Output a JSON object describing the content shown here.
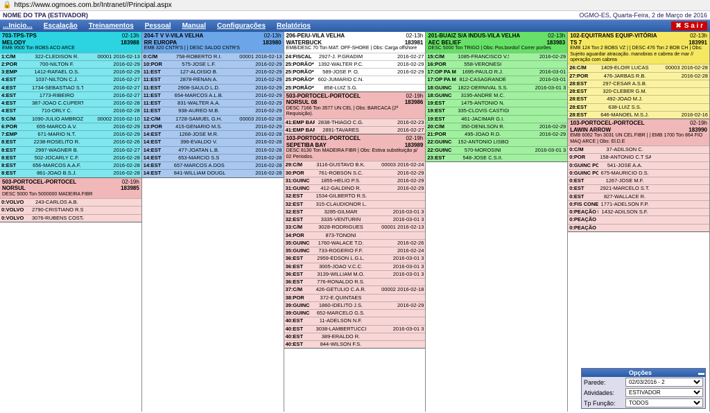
{
  "url": "https://www.ogmoes.com.br/Intranet//Principal.aspx",
  "nav": {
    "left": "NOME DO TPA (ESTIVADOR)",
    "right": "OGMO-ES, Quarta-Feira, 2 de Março de 2016"
  },
  "menu": [
    "...Inicio...",
    "Escalação",
    "Treinamentos",
    "Pessoal",
    "Manual",
    "Configurações",
    "Relatórios"
  ],
  "sair": "S a i r",
  "opts": {
    "title": "Opções",
    "parede_label": "Parede:",
    "parede_value": "02/03/2016 - 2",
    "ativ_label": "Atividades:",
    "ativ_value": "ESTIVADOR",
    "func_label": "Tp Função:",
    "func_value": "TODOS"
  },
  "columns": [
    {
      "ships": [
        {
          "colorH": "c-cyan",
          "colorR": "c-cyanL",
          "title": "703-TPS-TPS",
          "time": "02-13h",
          "name": "MELODY",
          "code": "183988",
          "desc": "EMB 9500 Ton BOBS ACO ARCE",
          "rows": [
            {
              "role": "1:C/M",
              "name": "322-CLEDISON R.",
              "right": "00001 2016-02-13"
            },
            {
              "role": "2:POR",
              "name": "700-NILTON F.",
              "right": "2016-02-29"
            },
            {
              "role": "3:EMP",
              "name": "1412-RAFAEL O.S.",
              "right": "2016-02-29"
            },
            {
              "role": "4:EST",
              "name": "1037-NILTON C.J.",
              "right": "2016-02-27"
            },
            {
              "role": "4:EST",
              "name": "1734-SEBASTIAO S.T.",
              "right": "2016-02-27"
            },
            {
              "role": "4:EST",
              "name": "1773-RIBEIRO",
              "right": "2016-02-27"
            },
            {
              "role": "4:EST",
              "name": "387-JOAO C.CUPERTINO",
              "right": "2016-02-28"
            },
            {
              "role": "4:EST",
              "name": "710-ORLY C.",
              "right": "2016-02-28"
            },
            {
              "role": "5:C/M",
              "name": "1090-JULIO AMBROZINI",
              "right": "00002 2016-02-10"
            },
            {
              "role": "6:POR",
              "name": "655-MARCO A.V.",
              "right": "2016-02-29"
            },
            {
              "role": "7:EMP",
              "name": "671-MARIO N.T.",
              "right": "2016-02-29"
            },
            {
              "role": "8:EST",
              "name": "2238-ROSELITO R.",
              "right": "2016-02-26"
            },
            {
              "role": "8:EST",
              "name": "2997-WAGNER B.",
              "right": "2016-02-27"
            },
            {
              "role": "8:EST",
              "name": "502-JOCARLY C.F.",
              "right": "2016-02-28"
            },
            {
              "role": "8:EST",
              "name": "656-MARCOS A.A.F.",
              "right": "2016-02-28"
            },
            {
              "role": "8:EST",
              "name": "861-JOAO B.S.J.",
              "right": "2016-02-28"
            }
          ]
        },
        {
          "colorH": "c-pink",
          "colorR": "c-pinkL",
          "title": "503-PORTOCEL-PORTOCEL",
          "time": "02-19h",
          "name": "NORSUL",
          "code": "183985",
          "desc": "DESC 5000 Ton 5000000 MADEIRA FIBR",
          "rows": [
            {
              "role": "0:VOLVO",
              "name": "243-CARLOS A.B.",
              "right": ""
            },
            {
              "role": "0:VOLVO",
              "name": "2790-CRISTIANO R.S.",
              "right": ""
            },
            {
              "role": "0:VOLVO",
              "name": "3076-RUBENS COSTA",
              "right": ""
            }
          ]
        }
      ]
    },
    {
      "ships": [
        {
          "colorH": "c-blue",
          "colorR": "c-blueL",
          "title": "204-T V V-VILA VELHA",
          "time": "02-13h",
          "name": "RR EUROPA",
          "code": "183980",
          "desc": "EMB 320 CNTR'S | | DESC SALDO CNTR'S",
          "rows": [
            {
              "role": "0:C/M",
              "name": "758-ROBERTO R.I.",
              "right": "00001 2016-02-13"
            },
            {
              "role": "10:POR",
              "name": "575-JOSE L.F.",
              "right": "2016-02-29"
            },
            {
              "role": "11:EST",
              "name": "127-ALOISIO B.",
              "right": "2016-02-29"
            },
            {
              "role": "11:EST",
              "name": "2878-RENAN A.",
              "right": "2016-02-29"
            },
            {
              "role": "11:EST",
              "name": "2908-SAULO L.D.",
              "right": "2016-02-29"
            },
            {
              "role": "11:EST",
              "name": "654-MARCOS A.L.B.",
              "right": "2016-02-29"
            },
            {
              "role": "11:EST",
              "name": "831-WALTER A.A.",
              "right": "2016-02-29"
            },
            {
              "role": "11:EST",
              "name": "938-AUREO M.B.",
              "right": "2016-02-29"
            },
            {
              "role": "12:C/M",
              "name": "1728-SAMUEL G.H.",
              "right": "00003 2016-02-28"
            },
            {
              "role": "13:POR",
              "name": "415-GENARIO M.S.",
              "right": "2016-02-29"
            },
            {
              "role": "14:EST",
              "name": "1268-JOSE M.R.",
              "right": "2016-02-28"
            },
            {
              "role": "14:EST",
              "name": "396-EVALDO V.",
              "right": "2016-02-28"
            },
            {
              "role": "14:EST",
              "name": "477-JOATAN L.B.",
              "right": "2016-02-28"
            },
            {
              "role": "14:EST",
              "name": "653-MARCIO S.S",
              "right": "2016-02-28"
            },
            {
              "role": "14:EST",
              "name": "657-MARCOS A.DOS SANTOS",
              "right": "2016-02-28"
            },
            {
              "role": "14:EST",
              "name": "841-WILLIAM DOUGLAS",
              "right": "2016-02-28"
            }
          ]
        }
      ]
    },
    {
      "ships": [
        {
          "colorH": "c-white",
          "colorR": "c-white",
          "title": "206-PEIU-VILA VELHA",
          "time": "02-13h",
          "name": "WATERBUCK",
          "code": "183981",
          "desc": "EMB/DESC 70 Ton MAT. OFF-SHORE | Obs: Carga offshore",
          "rows": [
            {
              "role": "24:FISCAL",
              "name": "2927-J. P.GRADIM",
              "right": "2016-02-27"
            },
            {
              "role": "25:PORÃO*",
              "name": "1392-WALTER P.C.",
              "right": "2016-02-29"
            },
            {
              "role": "25:PORÃO*",
              "name": "589-JOSE P. O.",
              "right": "2016-02-29"
            },
            {
              "role": "25:PORÃO*",
              "name": "602-JUMARIO C.N.",
              "right": ""
            },
            {
              "role": "25:PORÃO*",
              "name": "858-LUIZ S.G.",
              "right": ""
            }
          ]
        },
        {
          "colorH": "c-pink",
          "colorR": "c-pinkL",
          "title": "503-PORTOCEL-PORTOCEL",
          "time": "02-19h",
          "name": "NORSUL 08",
          "code": "183986",
          "desc": "DESC 7166 Ton 3577 UN CEL | Obs: BARCACA (2ª Requisição).",
          "rows": [
            {
              "role": "41:EMP BARCAÇA",
              "name": "2838-THIAGO C.G.",
              "right": "2016-02-23"
            },
            {
              "role": "41:EMP BARCAÇA",
              "name": "2891-TAVARES",
              "right": "2016-02-27"
            }
          ]
        },
        {
          "colorH": "c-pink",
          "colorR": "c-pinkL",
          "title": "103-PORTOCEL-PORTOCEL",
          "time": "02-19h",
          "name": "SEPETIBA BAY",
          "code": "183989",
          "desc": "DESC 8130 Ton MADEIRA FIBR | Obs: Estiva substituição p/ 02 Periodos.",
          "rows": [
            {
              "role": "29:C/M",
              "name": "3116-GUSTAVO B.K.",
              "right": "00003 2016-02-24"
            },
            {
              "role": "30:POR",
              "name": "761-ROBSON S.C.",
              "right": "2016-02-29"
            },
            {
              "role": "31:GUINC",
              "name": "1855-HELIO P.S.",
              "right": "2016-02-29"
            },
            {
              "role": "31:GUINC",
              "name": "412-GALDINO R.",
              "right": "2016-02-29"
            },
            {
              "role": "32:EST",
              "name": "1534-GILBERTO R.S.",
              "right": ""
            },
            {
              "role": "32:EST",
              "name": "315-CLAUDIONOR L.F.",
              "right": ""
            },
            {
              "role": "32:EST",
              "name": "3285-GILMAR",
              "right": "2016-03-01 3"
            },
            {
              "role": "32:EST",
              "name": "3335-VENTURIN",
              "right": "2016-03-01 3"
            },
            {
              "role": "33:C/M",
              "name": "3028-RODRIGUES",
              "right": "00001 2016-02-13"
            },
            {
              "role": "34:POR",
              "name": "873-TONONI",
              "right": ""
            },
            {
              "role": "35:GUINC",
              "name": "1760-WALACE T.D.",
              "right": "2016-02-26"
            },
            {
              "role": "35:GUINC",
              "name": "733-ROGERIO F.F.",
              "right": "2016-02-24"
            },
            {
              "role": "36:EST",
              "name": "2959-EDSON L.G.L.",
              "right": "2016-03-01 3"
            },
            {
              "role": "36:EST",
              "name": "3005-JOAO V.C.C.",
              "right": "2016-03-01 3"
            },
            {
              "role": "36:EST",
              "name": "3139-WILLIAM M.O.",
              "right": "2016-03-01 3"
            },
            {
              "role": "36:EST",
              "name": "776-RONALDO R.S.",
              "right": ""
            },
            {
              "role": "37:C/M",
              "name": "426-GETULIO C.A.R.",
              "right": "00002 2016-02-18"
            },
            {
              "role": "38:POR",
              "name": "372-E.QUINTAES",
              "right": ""
            },
            {
              "role": "39:GUINC",
              "name": "1860-IDELITO J.S.",
              "right": "2016-02-29"
            },
            {
              "role": "39:GUINC",
              "name": "652-MARCELO G.S.",
              "right": ""
            },
            {
              "role": "40:EST",
              "name": "11-ADELSON N.F.",
              "right": ""
            },
            {
              "role": "40:EST",
              "name": "3038-LAMBERTUCCI",
              "right": "2016-03-01 3"
            },
            {
              "role": "40:EST",
              "name": "389-ERALDO R.",
              "right": ""
            },
            {
              "role": "40:EST",
              "name": "844-WILSON F.S.",
              "right": ""
            }
          ]
        }
      ]
    },
    {
      "ships": [
        {
          "colorH": "c-green",
          "colorR": "c-greenL",
          "title": "201-BUAIZ S/A INDUS-VILA VELHA",
          "time": "02-13h",
          "name": "AEC BELIEF",
          "code": "183983",
          "desc": "DESC 5000 Ton TRIGO | Obs: Pos.bordo// Correr porões",
          "rows": [
            {
              "role": "15:C/M",
              "name": "1085-FRANCISCO V.S.",
              "right": "2016-02-29"
            },
            {
              "role": "16:POR",
              "name": "558-VERONESI",
              "right": ""
            },
            {
              "role": "17:OP PA MEC",
              "name": "1695-PAULO R.J.",
              "right": "2016-03-01"
            },
            {
              "role": "17:OP PA MEC",
              "name": "812-CASAGRANDE",
              "right": "2016-03-01"
            },
            {
              "role": "18:GUINC",
              "name": "1822-DERNIVAL S.S.",
              "right": "2016-03-01 3"
            },
            {
              "role": "18:GUINC",
              "name": "3195-ANDRE M.C.",
              "right": ""
            },
            {
              "role": "19:EST",
              "name": "1475-ANTONIO N.",
              "right": ""
            },
            {
              "role": "19:EST",
              "name": "335-CLOVIS CASTIGLIONI",
              "right": ""
            },
            {
              "role": "19:EST",
              "name": "461-JACIMAR G.I.",
              "right": ""
            },
            {
              "role": "20:C/M",
              "name": "350-DENILSON R.",
              "right": "2016-02-29"
            },
            {
              "role": "21:POR",
              "name": "495-JOAO R.D.",
              "right": "2016-02-29"
            },
            {
              "role": "22:GUINC",
              "name": "152-ANTONIO LISBOA",
              "right": ""
            },
            {
              "role": "22:GUINC",
              "name": "570-MOROSINI",
              "right": "2016-03-01 3"
            },
            {
              "role": "23:EST",
              "name": "548-JOSE C.S.II.",
              "right": ""
            }
          ]
        }
      ]
    },
    {
      "ships": [
        {
          "colorH": "c-yellow",
          "colorR": "c-yellowL",
          "title": "102-EQUITRANS EQUIP-VITÓRIA",
          "time": "02-13h",
          "name": "TS 7",
          "code": "183991",
          "desc": "EMB 124 Ton 2 BOBS VZ | | DESC 476 Ton 2 BOB CH | Obs: Sujeito aguardar atracação. manobras e cabrea de mar // operação com cabrea",
          "rows": [
            {
              "role": "26:C/M",
              "name": "1409-ELOIR LUCAS",
              "right": "00003 2016-02-28"
            },
            {
              "role": "27:POR",
              "name": "476-JARBAS R.B.",
              "right": "2016-02-28"
            },
            {
              "role": "28:EST",
              "name": "297-CESAR A.S.B.",
              "right": ""
            },
            {
              "role": "28:EST",
              "name": "320-CLEBER G.M.",
              "right": ""
            },
            {
              "role": "28:EST",
              "name": "492-JOAO M.J.",
              "right": ""
            },
            {
              "role": "28:EST",
              "name": "638-LUIZ S.S.",
              "right": ""
            },
            {
              "role": "28:EST",
              "name": "646-MANOEL M.S.J.",
              "right": "2016-02-16"
            }
          ]
        },
        {
          "colorH": "c-pink",
          "colorR": "c-pinkL",
          "title": "103-PORTOCEL-PORTOCEL",
          "time": "02-19h",
          "name": "LAWIN ARROW",
          "code": "183990",
          "desc": "EMB 6062 Ton 3031 UN CEL FIBR | | EMB 1700 Ton 864 FIO MAQ ARCE | Obs: El.D.E",
          "rows": [
            {
              "role": "0:C/M",
              "name": "37-ADILSON C.",
              "right": ""
            },
            {
              "role": "0:POR",
              "name": "158-ANTONIO C.T SA",
              "right": ""
            },
            {
              "role": "0:GUINC PC",
              "name": "541-JOSE A.A.",
              "right": ""
            },
            {
              "role": "0:GUINC PC",
              "name": "675-MAURICIO D.S.",
              "right": ""
            },
            {
              "role": "0:EST",
              "name": "1267-JOSE M.F.",
              "right": ""
            },
            {
              "role": "0:EST",
              "name": "2921-MARCELO S.T.",
              "right": ""
            },
            {
              "role": "0:EST",
              "name": "827-WALLACE R.",
              "right": ""
            },
            {
              "role": "0:FIS CONEXO",
              "name": "1771-ADELSON F.P.",
              "right": ""
            },
            {
              "role": "0:PEAÇÃO E",
              "name": "1432-ADILSON S.F.",
              "right": ""
            },
            {
              "role": "0:PEAÇÃO",
              "name": "",
              "right": ""
            },
            {
              "role": "0:PEAÇÃO",
              "name": "",
              "right": ""
            }
          ]
        }
      ]
    }
  ]
}
